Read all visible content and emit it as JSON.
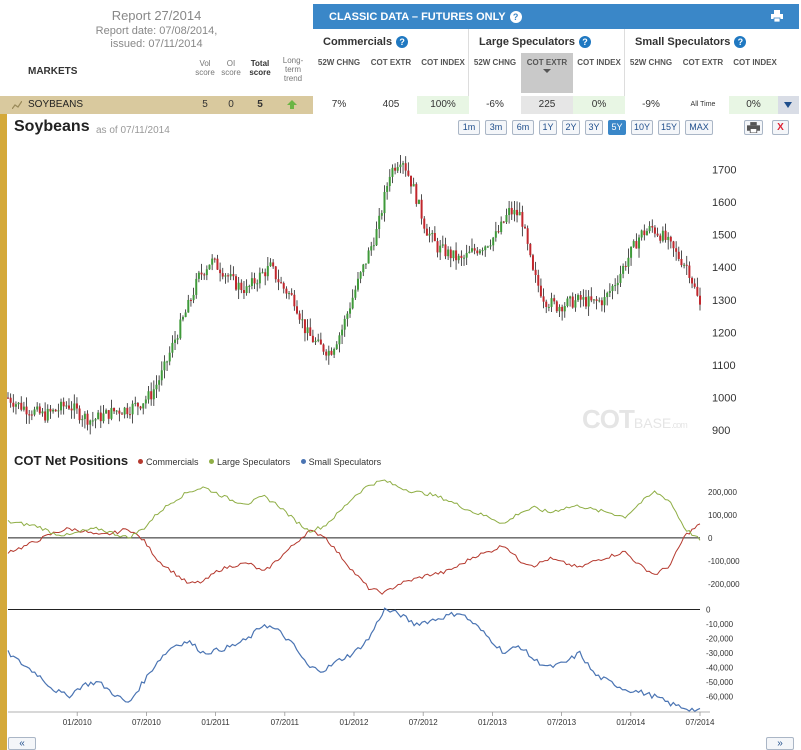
{
  "header": {
    "report_title": "Report 27/2014",
    "report_date": "Report date: 07/08/2014,",
    "issued": "issued: 07/11/2014",
    "markets_label": "MARKETS",
    "score_headers": [
      "Vol score",
      "OI score",
      "Total score",
      "Long-term trend"
    ]
  },
  "classic": {
    "title": "CLASSIC DATA – FUTURES ONLY",
    "help_glyph": "?",
    "groups": [
      {
        "name": "Commercials",
        "cols": [
          "52W CHNG",
          "COT EXTR",
          "COT INDEX"
        ]
      },
      {
        "name": "Large Speculators",
        "cols": [
          "52W CHNG",
          "COT EXTR",
          "COT INDEX"
        ]
      },
      {
        "name": "Small Speculators",
        "cols": [
          "52W CHNG",
          "COT EXTR",
          "COT INDEX"
        ]
      }
    ]
  },
  "row": {
    "market": "SOYBEANS",
    "vol_score": "5",
    "oi_score": "0",
    "total_score": "5",
    "trend": "up",
    "values": [
      "7%",
      "405",
      "100%",
      "-6%",
      "225",
      "0%",
      "-9%",
      "All Time",
      "0%"
    ]
  },
  "chart": {
    "title": "Soybeans",
    "asof": "as of 07/11/2014",
    "ranges": [
      "1m",
      "3m",
      "6m",
      "1Y",
      "2Y",
      "3Y",
      "5Y",
      "10Y",
      "15Y",
      "MAX"
    ],
    "active_range": "5Y",
    "close_glyph": "X",
    "watermark_main": "COT",
    "watermark_light": "BASE",
    "watermark_domain": ".com",
    "cot_title": "COT Net Positions",
    "legend": [
      "Commercials",
      "Large Speculators",
      "Small Speculators"
    ],
    "pager_left": "«",
    "pager_right": "»"
  },
  "colors": {
    "commercials": "#b5392e",
    "large": "#8fae45",
    "small": "#4a74b3",
    "up_candle": "#3f9a3a",
    "down_candle": "#c1272d",
    "accent": "#3a87c8"
  },
  "chart_data": [
    {
      "type": "candlestick",
      "title": "Soybeans",
      "x_ticks": [
        "01/2010",
        "07/2010",
        "01/2011",
        "07/2011",
        "01/2012",
        "07/2012",
        "01/2013",
        "07/2013",
        "01/2014",
        "07/2014"
      ],
      "y_ticks": [
        900,
        1000,
        1100,
        1200,
        1300,
        1400,
        1500,
        1600,
        1700
      ],
      "ylim": [
        870,
        1790
      ],
      "x_start": "2009-07",
      "x_end": "2014-07",
      "close_series": [
        1000,
        975,
        960,
        945,
        960,
        980,
        950,
        930,
        945,
        960,
        965,
        980,
        1010,
        1080,
        1180,
        1270,
        1370,
        1420,
        1390,
        1350,
        1330,
        1370,
        1400,
        1340,
        1300,
        1200,
        1160,
        1140,
        1210,
        1320,
        1420,
        1520,
        1690,
        1740,
        1640,
        1520,
        1460,
        1440,
        1420,
        1450,
        1470,
        1500,
        1570,
        1560,
        1380,
        1300,
        1280,
        1290,
        1300,
        1290,
        1300,
        1360,
        1430,
        1500,
        1520,
        1490,
        1440,
        1400,
        1280
      ],
      "grid": false
    },
    {
      "type": "line",
      "title": "COT Net Positions",
      "x_ticks": [
        "01/2010",
        "07/2010",
        "01/2011",
        "07/2011",
        "01/2012",
        "07/2012",
        "01/2013",
        "07/2013",
        "01/2014",
        "07/2014"
      ],
      "y_ticks": [
        -200000,
        -100000,
        0,
        100000,
        200000
      ],
      "ylim": [
        -270000,
        260000
      ],
      "series": [
        {
          "name": "Commercials",
          "values": [
            -60000,
            -40000,
            -10000,
            20000,
            40000,
            30000,
            10000,
            20000,
            40000,
            -10000,
            -100000,
            -150000,
            -200000,
            -190000,
            -140000,
            -120000,
            -110000,
            -150000,
            -90000,
            -30000,
            30000,
            10000,
            -70000,
            -150000,
            -220000,
            -240000,
            -200000,
            -180000,
            -160000,
            -150000,
            -120000,
            -80000,
            -60000,
            -30000,
            -100000,
            -120000,
            -90000,
            -110000,
            -130000,
            -100000,
            -80000,
            -60000,
            -120000,
            -160000,
            -120000,
            10000,
            60000
          ]
        },
        {
          "name": "Large Speculators",
          "values": [
            70000,
            60000,
            50000,
            20000,
            10000,
            30000,
            40000,
            20000,
            0,
            40000,
            110000,
            160000,
            200000,
            220000,
            190000,
            160000,
            150000,
            180000,
            140000,
            80000,
            30000,
            50000,
            110000,
            180000,
            230000,
            250000,
            220000,
            200000,
            190000,
            170000,
            140000,
            110000,
            90000,
            60000,
            110000,
            130000,
            110000,
            130000,
            140000,
            120000,
            110000,
            90000,
            150000,
            200000,
            160000,
            40000,
            -10000
          ]
        },
        {
          "name": "Small Speculators",
          "values": [
            -30000,
            -38000,
            -45000,
            -55000,
            -60000,
            -52000,
            -50000,
            -58000,
            -65000,
            -50000,
            -35000,
            -25000,
            -22000,
            -30000,
            -28000,
            -25000,
            -20000,
            -10000,
            -15000,
            -25000,
            -40000,
            -42000,
            -35000,
            -30000,
            -20000,
            0,
            -3000,
            -10000,
            -8000,
            -5000,
            -2000,
            -10000,
            -20000,
            -30000,
            -25000,
            -35000,
            -40000,
            -37000,
            -30000,
            -45000,
            -50000,
            -55000,
            -57000,
            -60000,
            -65000,
            -68000,
            -70000
          ]
        }
      ]
    },
    {
      "type": "line",
      "title": "Small Speculators",
      "y_ticks": [
        -60000,
        -50000,
        -40000,
        -30000,
        -20000,
        -10000,
        0
      ],
      "ylim": [
        -68000,
        1000
      ]
    }
  ]
}
